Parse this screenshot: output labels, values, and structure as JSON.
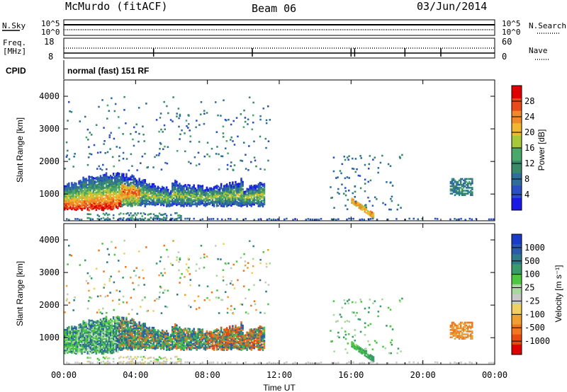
{
  "header": {
    "station": "McMurdo (fitACF)",
    "beam": "Beam 06",
    "date": "03/Jun/2014"
  },
  "top_panels": {
    "nsky_label": "N.Sky",
    "nsky_ticks": [
      "10^5",
      "10^0"
    ],
    "nsearch_label": "N.Search",
    "nsearch_ticks": [
      "10^5",
      "10^0"
    ],
    "freq_label": "Freq.",
    "freq_unit": "[MHz]",
    "freq_ticks": [
      "18",
      "8"
    ],
    "nave_label": "Nave",
    "nave_ticks": [
      "60",
      "0"
    ],
    "cpid_label": "CPID",
    "cpid_value": "normal (fast) 151 RF"
  },
  "chart_data": [
    {
      "type": "heatmap",
      "quantity": "Power",
      "ylabel": "Slant Range [km]",
      "xlabel": "Time UT",
      "xlim_hours": [
        0,
        24
      ],
      "ylim_km": [
        180,
        4500
      ],
      "x_ticks": [
        "00:00",
        "04:00",
        "08:00",
        "12:00",
        "16:00",
        "20:00",
        "00:00"
      ],
      "y_ticks": [
        1000,
        2000,
        3000,
        4000
      ],
      "colorbar": {
        "label": "Power [dB]",
        "ticks": [
          4,
          8,
          12,
          16,
          20,
          24,
          28
        ],
        "range": [
          0,
          32
        ],
        "colors": [
          "#1a1ae6",
          "#2a4fc4",
          "#2f6e9a",
          "#3a8a6a",
          "#4aa86a",
          "#a8c83c",
          "#f0b830",
          "#f08a28",
          "#e84a1c",
          "#e00000"
        ]
      },
      "regions": [
        {
          "t0": 0.0,
          "t1": 11.2,
          "r0": 500,
          "r1": 1750,
          "value": "echo band, 6-28 dB, strongest near 600-1000 km between 00:00-03:00"
        },
        {
          "t0": 16.0,
          "t1": 17.2,
          "r0": 350,
          "r1": 800,
          "value": "~20 dB"
        },
        {
          "t0": 21.5,
          "t1": 22.7,
          "r0": 950,
          "r1": 1500,
          "value": "~10 dB"
        }
      ]
    },
    {
      "type": "heatmap",
      "quantity": "Velocity",
      "ylabel": "Slant Range [km]",
      "xlabel": "Time UT",
      "xlim_hours": [
        0,
        24
      ],
      "ylim_km": [
        180,
        4500
      ],
      "x_ticks": [
        "00:00",
        "04:00",
        "08:00",
        "12:00",
        "16:00",
        "20:00",
        "00:00"
      ],
      "y_ticks": [
        1000,
        2000,
        3000,
        4000
      ],
      "colorbar": {
        "label": "Velocity [m s⁻¹]",
        "ticks": [
          "1000",
          "500",
          "100",
          "25",
          "-25",
          "-100",
          "-500",
          "-1000"
        ],
        "colors": [
          "#1a3cc8",
          "#2a5aa8",
          "#2f7a8a",
          "#3a9a6a",
          "#4cc840",
          "#a8d8a0",
          "#c8c8c8",
          "#f0d060",
          "#f0a030",
          "#f07820",
          "#e84a10",
          "#e00000"
        ]
      },
      "regions": [
        {
          "t0": 0.0,
          "t1": 11.2,
          "r0": 500,
          "r1": 1800,
          "value": "mixed: green/blue (positive) and orange (negative) velocities"
        },
        {
          "t0": 21.5,
          "t1": 22.7,
          "r0": 950,
          "r1": 1450,
          "value": "orange, ~-100 m/s"
        }
      ]
    }
  ]
}
